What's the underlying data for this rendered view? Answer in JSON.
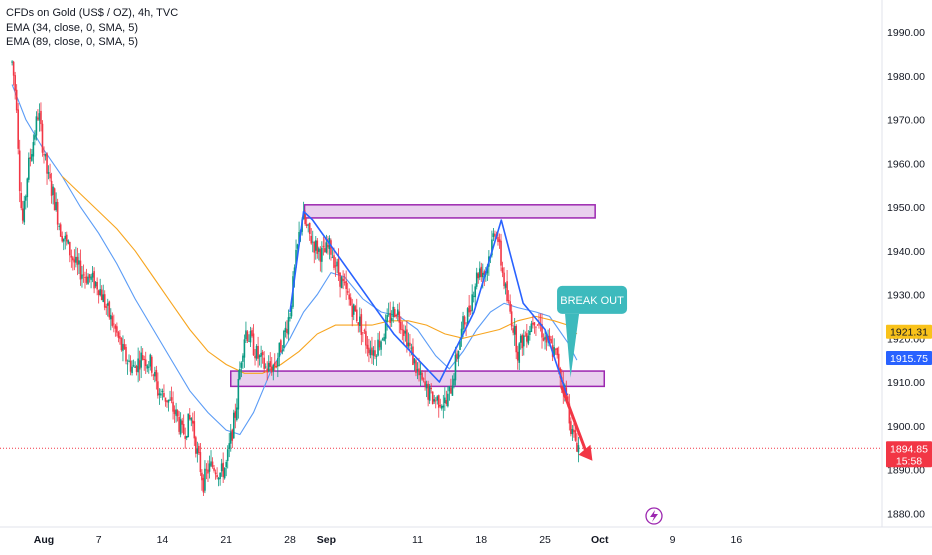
{
  "chart_data": {
    "type": "candlestick",
    "title": "CFDs on Gold (US$ / OZ), 4h, TVC",
    "indicators": [
      "EMA (34, close, 0, SMA, 5)",
      "EMA (89, close, 0, SMA, 5)"
    ],
    "ylim": [
      1876,
      1993
    ],
    "y_ticks": [
      1880,
      1890,
      1900,
      1910,
      1920,
      1930,
      1940,
      1950,
      1960,
      1970,
      1980,
      1990
    ],
    "y_tick_labels": [
      "1880.00",
      "1890.00",
      "1900.00",
      "1910.00",
      "1920.00",
      "1930.00",
      "1940.00",
      "1950.00",
      "1960.00",
      "1970.00",
      "1980.00",
      "1990.00"
    ],
    "x_ticks": [
      {
        "label": "Aug",
        "day": 0,
        "bold": true
      },
      {
        "label": "7",
        "day": 6
      },
      {
        "label": "14",
        "day": 13
      },
      {
        "label": "21",
        "day": 20
      },
      {
        "label": "28",
        "day": 27
      },
      {
        "label": "Sep",
        "day": 31,
        "bold": true
      },
      {
        "label": "11",
        "day": 41
      },
      {
        "label": "18",
        "day": 48
      },
      {
        "label": "25",
        "day": 55
      },
      {
        "label": "Oct",
        "day": 61,
        "bold": true
      },
      {
        "label": "9",
        "day": 69
      },
      {
        "label": "16",
        "day": 76
      }
    ],
    "price_path": [
      [
        -3.5,
        1983
      ],
      [
        -3,
        1974
      ],
      [
        -2.6,
        1952
      ],
      [
        -2.3,
        1946
      ],
      [
        -1.8,
        1958
      ],
      [
        -1.1,
        1966
      ],
      [
        -0.6,
        1972
      ],
      [
        -0.2,
        1965
      ],
      [
        0.4,
        1957
      ],
      [
        1.0,
        1953
      ],
      [
        1.8,
        1945
      ],
      [
        2.6,
        1941
      ],
      [
        3.6,
        1936
      ],
      [
        4.8,
        1934
      ],
      [
        6.0,
        1932
      ],
      [
        7.0,
        1926
      ],
      [
        7.8,
        1922
      ],
      [
        8.8,
        1916
      ],
      [
        9.8,
        1913
      ],
      [
        10.8,
        1916
      ],
      [
        11.8,
        1914
      ],
      [
        12.5,
        1908
      ],
      [
        13.6,
        1906
      ],
      [
        14.6,
        1902
      ],
      [
        15.2,
        1898
      ],
      [
        16.2,
        1902
      ],
      [
        16.8,
        1894
      ],
      [
        17.5,
        1887
      ],
      [
        18.0,
        1890
      ],
      [
        18.6,
        1891
      ],
      [
        19.4,
        1889
      ],
      [
        20.0,
        1891
      ],
      [
        20.6,
        1898
      ],
      [
        21.1,
        1904
      ],
      [
        21.6,
        1915
      ],
      [
        22.1,
        1922
      ],
      [
        22.6,
        1920
      ],
      [
        23.4,
        1916
      ],
      [
        24.4,
        1913
      ],
      [
        25.4,
        1914
      ],
      [
        26.4,
        1921
      ],
      [
        27.0,
        1926
      ],
      [
        27.6,
        1937
      ],
      [
        28.3,
        1948
      ],
      [
        29.0,
        1944
      ],
      [
        29.8,
        1941
      ],
      [
        30.6,
        1939
      ],
      [
        31.4,
        1941
      ],
      [
        32.0,
        1937
      ],
      [
        32.8,
        1932
      ],
      [
        33.6,
        1928
      ],
      [
        34.6,
        1924
      ],
      [
        35.4,
        1919
      ],
      [
        36.2,
        1917
      ],
      [
        37.0,
        1920
      ],
      [
        37.8,
        1924
      ],
      [
        38.6,
        1927
      ],
      [
        39.4,
        1923
      ],
      [
        40.4,
        1916
      ],
      [
        41.2,
        1911
      ],
      [
        42.0,
        1908
      ],
      [
        42.8,
        1906
      ],
      [
        43.6,
        1906
      ],
      [
        44.2,
        1905
      ],
      [
        44.8,
        1910
      ],
      [
        45.4,
        1917
      ],
      [
        46.0,
        1923
      ],
      [
        46.6,
        1926
      ],
      [
        47.2,
        1932
      ],
      [
        47.8,
        1936
      ],
      [
        48.4,
        1935
      ],
      [
        49.0,
        1940
      ],
      [
        49.6,
        1946
      ],
      [
        50.2,
        1937
      ],
      [
        50.8,
        1929
      ],
      [
        51.4,
        1924
      ],
      [
        52.0,
        1917
      ],
      [
        52.6,
        1920
      ],
      [
        53.2,
        1922
      ],
      [
        53.8,
        1925
      ],
      [
        54.4,
        1923
      ],
      [
        55.0,
        1920
      ],
      [
        55.6,
        1918
      ],
      [
        56.2,
        1916
      ],
      [
        56.8,
        1911
      ],
      [
        57.4,
        1906
      ],
      [
        58.0,
        1898
      ],
      [
        58.5,
        1896
      ],
      [
        58.8,
        1895
      ]
    ],
    "series": [
      {
        "name": "EMA (34, close, 0, SMA, 5)",
        "color": "#5b9cf6",
        "points": [
          [
            -3.5,
            1978
          ],
          [
            -2,
            1970
          ],
          [
            0,
            1963
          ],
          [
            2,
            1957
          ],
          [
            4,
            1950
          ],
          [
            6,
            1944
          ],
          [
            8,
            1937
          ],
          [
            10,
            1929
          ],
          [
            12,
            1922
          ],
          [
            14,
            1915
          ],
          [
            16,
            1908
          ],
          [
            18,
            1903
          ],
          [
            20,
            1899
          ],
          [
            21.5,
            1898
          ],
          [
            23,
            1903
          ],
          [
            25,
            1913
          ],
          [
            27,
            1920
          ],
          [
            28.5,
            1926
          ],
          [
            30,
            1930
          ],
          [
            31.5,
            1935
          ],
          [
            33,
            1934
          ],
          [
            35,
            1929
          ],
          [
            37,
            1926
          ],
          [
            39,
            1925
          ],
          [
            41,
            1922
          ],
          [
            43,
            1916
          ],
          [
            44.5,
            1913
          ],
          [
            46,
            1917
          ],
          [
            47.5,
            1922
          ],
          [
            49,
            1926
          ],
          [
            50.5,
            1928
          ],
          [
            52,
            1927
          ],
          [
            54,
            1926
          ],
          [
            55.5,
            1925
          ],
          [
            56.5,
            1922
          ],
          [
            57.5,
            1919
          ],
          [
            58.5,
            1915
          ]
        ]
      },
      {
        "name": "EMA (89, close, 0, SMA, 5)",
        "color": "#f7a51f",
        "points": [
          [
            2,
            1957
          ],
          [
            4,
            1953
          ],
          [
            6,
            1949
          ],
          [
            8,
            1945
          ],
          [
            10,
            1940
          ],
          [
            12,
            1934
          ],
          [
            14,
            1928
          ],
          [
            16,
            1922
          ],
          [
            18,
            1917
          ],
          [
            20,
            1914
          ],
          [
            22,
            1912
          ],
          [
            24,
            1912
          ],
          [
            26,
            1914
          ],
          [
            28,
            1917
          ],
          [
            30,
            1921
          ],
          [
            32,
            1923
          ],
          [
            34,
            1923
          ],
          [
            36,
            1923
          ],
          [
            38,
            1924
          ],
          [
            40,
            1924
          ],
          [
            42,
            1923
          ],
          [
            44,
            1921
          ],
          [
            46,
            1920
          ],
          [
            48,
            1921
          ],
          [
            50,
            1922
          ],
          [
            52,
            1924
          ],
          [
            54,
            1925
          ],
          [
            56,
            1924
          ],
          [
            57.5,
            1923
          ],
          [
            58.5,
            1921
          ]
        ]
      }
    ],
    "price_labels": [
      {
        "value": "1921.31",
        "color": "#f9c21a",
        "text_color": "#131722"
      },
      {
        "value": "1915.75",
        "color": "#2962ff",
        "text_color": "#ffffff"
      },
      {
        "value": "1894.85",
        "sub": "15:58",
        "color": "#f23645",
        "text_color": "#ffffff"
      }
    ],
    "last_price": 1894.85,
    "annotations": {
      "resistance_zone": {
        "day_from": 28.6,
        "day_to": 60.5,
        "y_from": 1947.5,
        "y_to": 1950.5,
        "color": "#9c27b0"
      },
      "support_zone": {
        "day_from": 20.5,
        "day_to": 61.5,
        "y_from": 1909.0,
        "y_to": 1912.5,
        "color": "#9c27b0"
      },
      "pattern_lines": [
        [
          [
            27.0,
            1926
          ],
          [
            28.5,
            1949
          ],
          [
            29.5,
            1947
          ],
          [
            38.4,
            1921
          ],
          [
            43.4,
            1910
          ],
          [
            47.2,
            1926
          ],
          [
            50.2,
            1947
          ],
          [
            52.6,
            1928
          ],
          [
            55.0,
            1922
          ],
          [
            57.4,
            1907
          ]
        ]
      ],
      "callout": {
        "text": "BREAK OUT",
        "day": 55.0,
        "y": 1929,
        "tip_day": 57.8,
        "tip_y": 1911,
        "color": "#3dbabd"
      },
      "down_arrow": {
        "from_day": 56.8,
        "from_y": 1909,
        "to_day": 60.2,
        "to_y": 1892,
        "color": "#f23645"
      }
    }
  }
}
